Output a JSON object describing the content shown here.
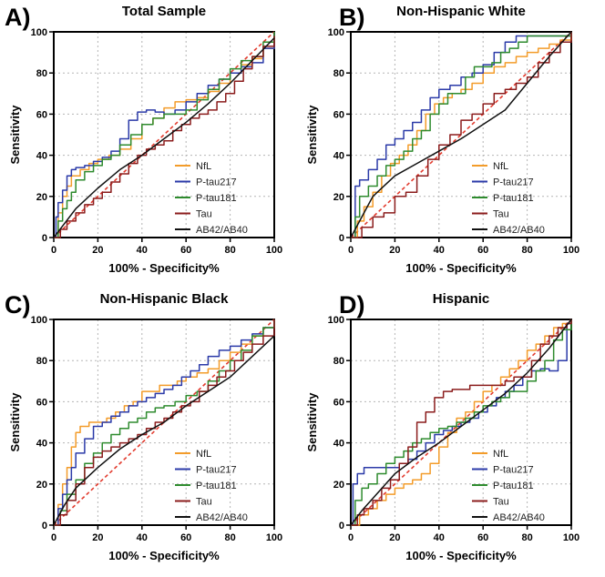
{
  "figure": {
    "colors": {
      "NfL": "#f39c2a",
      "P-tau217": "#2b3aa8",
      "P-tau181": "#2e8b2e",
      "Tau": "#8b1c1c",
      "AB42/AB40": "#111111",
      "reference": "#e23b2e"
    }
  },
  "chart_data": [
    {
      "type": "line",
      "panel_letter": "A)",
      "title": "Total  Sample",
      "xlabel": "100% - Specificity%",
      "ylabel": "Sensitivity",
      "xlim": [
        0,
        100
      ],
      "ylim": [
        0,
        100
      ],
      "xticks": [
        0,
        20,
        40,
        60,
        80,
        100
      ],
      "yticks": [
        0,
        20,
        40,
        60,
        80,
        100
      ],
      "grid": true,
      "legend": [
        "NfL",
        "P-tau217",
        "P-tau181",
        "Tau",
        "AB42/AB40"
      ],
      "legend_position": "bottom-right",
      "reference_line": true,
      "series": [
        {
          "name": "NfL",
          "x": [
            0,
            2,
            4,
            6,
            8,
            12,
            16,
            20,
            25,
            30,
            35,
            40,
            45,
            50,
            55,
            60,
            65,
            70,
            75,
            80,
            85,
            90,
            95,
            100
          ],
          "y": [
            0,
            12,
            20,
            25,
            30,
            33,
            36,
            38,
            40,
            43,
            48,
            55,
            58,
            63,
            66,
            67,
            68,
            71,
            75,
            80,
            84,
            87,
            92,
            100
          ]
        },
        {
          "name": "P-tau217",
          "x": [
            0,
            1,
            2,
            4,
            6,
            8,
            10,
            14,
            18,
            22,
            26,
            30,
            34,
            38,
            42,
            46,
            50,
            55,
            60,
            65,
            70,
            75,
            80,
            85,
            90,
            95,
            100
          ],
          "y": [
            0,
            10,
            17,
            23,
            30,
            33,
            34,
            35,
            37,
            39,
            42,
            48,
            57,
            61,
            62,
            61,
            60,
            62,
            66,
            70,
            74,
            77,
            80,
            83,
            85,
            92,
            100
          ]
        },
        {
          "name": "P-tau181",
          "x": [
            0,
            2,
            4,
            6,
            8,
            10,
            14,
            18,
            22,
            26,
            30,
            35,
            40,
            45,
            50,
            55,
            60,
            65,
            70,
            75,
            80,
            85,
            90,
            95,
            100
          ],
          "y": [
            0,
            8,
            14,
            18,
            22,
            28,
            32,
            35,
            38,
            40,
            45,
            50,
            55,
            58,
            60,
            60,
            62,
            67,
            72,
            77,
            82,
            86,
            88,
            95,
            100
          ]
        },
        {
          "name": "Tau",
          "x": [
            0,
            3,
            6,
            10,
            14,
            18,
            22,
            26,
            30,
            34,
            38,
            42,
            46,
            50,
            54,
            58,
            62,
            66,
            70,
            74,
            78,
            82,
            86,
            90,
            95,
            100
          ],
          "y": [
            0,
            4,
            8,
            12,
            16,
            19,
            22,
            27,
            31,
            36,
            40,
            43,
            45,
            47,
            52,
            55,
            58,
            60,
            62,
            66,
            70,
            76,
            82,
            88,
            93,
            98
          ]
        },
        {
          "name": "AB42/AB40",
          "x": [
            0,
            5,
            10,
            20,
            30,
            40,
            50,
            60,
            70,
            80,
            90,
            100
          ],
          "y": [
            0,
            7,
            14,
            24,
            33,
            40,
            48,
            56,
            65,
            75,
            86,
            97
          ]
        }
      ]
    },
    {
      "type": "line",
      "panel_letter": "B)",
      "title": "Non-Hispanic White",
      "xlabel": "100% - Specificity%",
      "ylabel": "Sensitivity",
      "xlim": [
        0,
        100
      ],
      "ylim": [
        0,
        100
      ],
      "xticks": [
        0,
        20,
        40,
        60,
        80,
        100
      ],
      "yticks": [
        0,
        20,
        40,
        60,
        80,
        100
      ],
      "grid": true,
      "legend": [
        "NfL",
        "P-tau217",
        "P-tau181",
        "Tau",
        "AB42/AB40"
      ],
      "legend_position": "bottom-right",
      "reference_line": true,
      "series": [
        {
          "name": "NfL",
          "x": [
            0,
            3,
            6,
            10,
            14,
            18,
            22,
            26,
            30,
            34,
            38,
            42,
            46,
            50,
            55,
            60,
            65,
            70,
            75,
            80,
            85,
            90,
            95,
            100
          ],
          "y": [
            0,
            8,
            15,
            22,
            30,
            36,
            40,
            45,
            52,
            60,
            65,
            68,
            70,
            72,
            75,
            80,
            83,
            85,
            88,
            90,
            92,
            94,
            96,
            100
          ]
        },
        {
          "name": "P-tau217",
          "x": [
            0,
            2,
            4,
            8,
            12,
            16,
            20,
            24,
            28,
            32,
            36,
            40,
            45,
            50,
            55,
            60,
            65,
            70,
            75,
            80,
            85,
            90,
            95,
            100
          ],
          "y": [
            0,
            25,
            28,
            33,
            38,
            45,
            48,
            52,
            56,
            62,
            68,
            72,
            74,
            78,
            80,
            84,
            90,
            95,
            98,
            98,
            98,
            98,
            98,
            100
          ]
        },
        {
          "name": "P-tau181",
          "x": [
            0,
            2,
            4,
            8,
            12,
            16,
            20,
            24,
            28,
            32,
            36,
            40,
            44,
            48,
            52,
            56,
            60,
            64,
            68,
            72,
            76,
            80,
            85,
            90,
            95,
            100
          ],
          "y": [
            0,
            10,
            20,
            25,
            30,
            35,
            38,
            42,
            48,
            52,
            60,
            65,
            70,
            70,
            78,
            83,
            83,
            85,
            90,
            92,
            95,
            98,
            98,
            98,
            98,
            100
          ]
        },
        {
          "name": "Tau",
          "x": [
            0,
            5,
            10,
            15,
            20,
            25,
            30,
            35,
            40,
            45,
            50,
            55,
            60,
            65,
            70,
            75,
            80,
            85,
            90,
            95,
            100
          ],
          "y": [
            0,
            5,
            10,
            12,
            20,
            22,
            30,
            38,
            45,
            50,
            57,
            60,
            65,
            70,
            72,
            75,
            78,
            85,
            90,
            95,
            100
          ]
        },
        {
          "name": "AB42/AB40",
          "x": [
            0,
            5,
            10,
            20,
            30,
            40,
            50,
            60,
            70,
            80,
            90,
            100
          ],
          "y": [
            0,
            10,
            20,
            30,
            36,
            42,
            48,
            55,
            62,
            75,
            88,
            100
          ]
        }
      ]
    },
    {
      "type": "line",
      "panel_letter": "C)",
      "title": "Non-Hispanic Black",
      "xlabel": "100% - Specificity%",
      "ylabel": "Sensitivity",
      "xlim": [
        0,
        100
      ],
      "ylim": [
        0,
        100
      ],
      "xticks": [
        0,
        20,
        40,
        60,
        80,
        100
      ],
      "yticks": [
        0,
        20,
        40,
        60,
        80,
        100
      ],
      "grid": true,
      "legend": [
        "NfL",
        "P-tau217",
        "P-tau181",
        "Tau",
        "AB42/AB40"
      ],
      "legend_position": "bottom-right",
      "reference_line": true,
      "series": [
        {
          "name": "NfL",
          "x": [
            0,
            2,
            4,
            6,
            8,
            10,
            12,
            16,
            20,
            24,
            28,
            32,
            36,
            40,
            44,
            48,
            52,
            56,
            60,
            65,
            70,
            75,
            80,
            85,
            90,
            95,
            100
          ],
          "y": [
            0,
            10,
            20,
            28,
            38,
            45,
            48,
            50,
            50,
            52,
            55,
            58,
            60,
            65,
            65,
            68,
            68,
            70,
            72,
            74,
            76,
            80,
            84,
            88,
            92,
            96,
            100
          ]
        },
        {
          "name": "P-tau217",
          "x": [
            0,
            2,
            4,
            6,
            8,
            10,
            14,
            18,
            22,
            26,
            30,
            34,
            38,
            42,
            46,
            50,
            54,
            58,
            62,
            66,
            70,
            75,
            80,
            85,
            90,
            95,
            100
          ],
          "y": [
            0,
            8,
            15,
            22,
            28,
            35,
            42,
            48,
            50,
            53,
            55,
            58,
            60,
            62,
            64,
            66,
            68,
            72,
            75,
            78,
            82,
            85,
            87,
            90,
            93,
            96,
            100
          ]
        },
        {
          "name": "P-tau181",
          "x": [
            0,
            3,
            6,
            10,
            14,
            18,
            22,
            26,
            30,
            34,
            38,
            42,
            46,
            50,
            55,
            60,
            65,
            70,
            75,
            80,
            85,
            90,
            95,
            100
          ],
          "y": [
            0,
            7,
            15,
            22,
            30,
            35,
            40,
            44,
            47,
            50,
            52,
            55,
            57,
            58,
            60,
            63,
            65,
            70,
            75,
            80,
            85,
            92,
            96,
            100
          ]
        },
        {
          "name": "Tau",
          "x": [
            0,
            3,
            6,
            10,
            14,
            18,
            22,
            26,
            30,
            34,
            38,
            42,
            46,
            50,
            54,
            58,
            62,
            66,
            70,
            74,
            78,
            82,
            86,
            90,
            95,
            100
          ],
          "y": [
            0,
            5,
            12,
            20,
            28,
            33,
            36,
            38,
            40,
            42,
            44,
            47,
            50,
            52,
            55,
            58,
            60,
            65,
            68,
            72,
            75,
            80,
            84,
            88,
            92,
            100
          ]
        },
        {
          "name": "AB42/AB40",
          "x": [
            0,
            5,
            10,
            20,
            30,
            40,
            50,
            60,
            70,
            80,
            90,
            100
          ],
          "y": [
            0,
            10,
            18,
            28,
            37,
            44,
            50,
            58,
            65,
            72,
            82,
            92
          ]
        }
      ]
    },
    {
      "type": "line",
      "panel_letter": "D)",
      "title": "Hispanic",
      "xlabel": "100% - Specificity%",
      "ylabel": "Sensitivity",
      "xlim": [
        0,
        100
      ],
      "ylim": [
        0,
        100
      ],
      "xticks": [
        0,
        20,
        40,
        60,
        80,
        100
      ],
      "yticks": [
        0,
        20,
        40,
        60,
        80,
        100
      ],
      "grid": true,
      "legend": [
        "NfL",
        "P-tau217",
        "P-tau181",
        "Tau",
        "AB42/AB40"
      ],
      "legend_position": "bottom-right",
      "reference_line": true,
      "series": [
        {
          "name": "NfL",
          "x": [
            0,
            4,
            8,
            12,
            16,
            20,
            24,
            28,
            32,
            36,
            40,
            44,
            48,
            52,
            56,
            60,
            64,
            68,
            72,
            76,
            80,
            84,
            88,
            92,
            96,
            100
          ],
          "y": [
            0,
            5,
            8,
            12,
            15,
            18,
            20,
            22,
            25,
            30,
            38,
            45,
            52,
            55,
            60,
            65,
            68,
            72,
            76,
            80,
            85,
            88,
            92,
            96,
            98,
            100
          ]
        },
        {
          "name": "P-tau217",
          "x": [
            0,
            1,
            3,
            6,
            10,
            14,
            18,
            22,
            26,
            30,
            34,
            38,
            42,
            46,
            50,
            54,
            58,
            62,
            66,
            70,
            74,
            78,
            82,
            86,
            90,
            94,
            98,
            100
          ],
          "y": [
            0,
            20,
            25,
            28,
            28,
            28,
            28,
            30,
            32,
            36,
            40,
            44,
            46,
            48,
            50,
            52,
            55,
            58,
            62,
            65,
            68,
            72,
            75,
            76,
            75,
            80,
            98,
            100
          ]
        },
        {
          "name": "P-tau181",
          "x": [
            0,
            2,
            5,
            8,
            12,
            16,
            20,
            24,
            28,
            32,
            36,
            40,
            44,
            48,
            52,
            56,
            60,
            64,
            68,
            72,
            76,
            80,
            84,
            88,
            92,
            96,
            100
          ],
          "y": [
            0,
            12,
            18,
            20,
            25,
            30,
            33,
            36,
            40,
            42,
            45,
            47,
            48,
            50,
            52,
            55,
            58,
            60,
            62,
            65,
            65,
            70,
            75,
            80,
            90,
            95,
            100
          ]
        },
        {
          "name": "Tau",
          "x": [
            0,
            3,
            6,
            10,
            14,
            18,
            22,
            26,
            30,
            34,
            38,
            42,
            46,
            50,
            54,
            58,
            62,
            66,
            70,
            74,
            78,
            82,
            86,
            90,
            94,
            98,
            100
          ],
          "y": [
            0,
            5,
            8,
            12,
            18,
            22,
            30,
            38,
            50,
            55,
            62,
            65,
            66,
            66,
            68,
            68,
            68,
            68,
            70,
            72,
            72,
            80,
            88,
            92,
            96,
            98,
            100
          ]
        },
        {
          "name": "AB42/AB40",
          "x": [
            0,
            5,
            10,
            20,
            30,
            40,
            50,
            60,
            70,
            80,
            90,
            100
          ],
          "y": [
            0,
            7,
            13,
            25,
            33,
            40,
            48,
            56,
            64,
            74,
            86,
            100
          ]
        }
      ]
    }
  ]
}
